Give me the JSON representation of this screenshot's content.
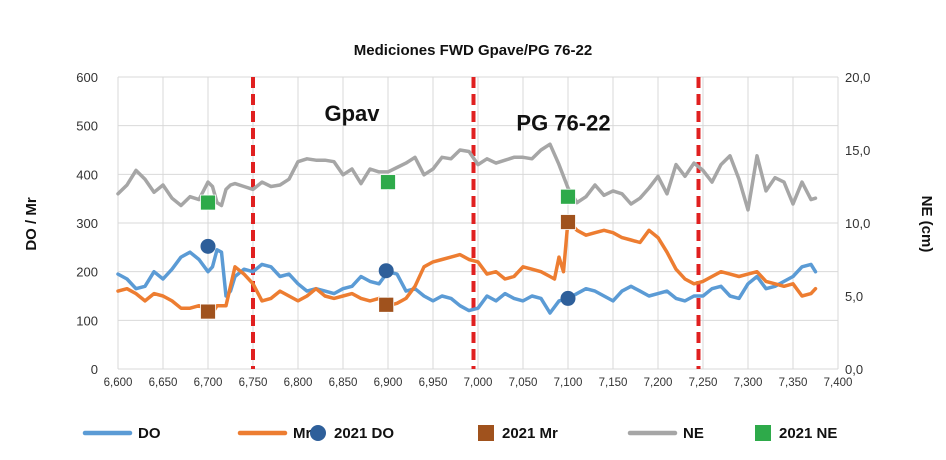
{
  "chart_data": {
    "type": "line",
    "title": "Mediciones FWD Gpave/PG 76-22",
    "ylabel": "DO / Mr",
    "y2label": "NE (cm)",
    "xlim": [
      6600,
      7400
    ],
    "ylim": [
      0,
      600
    ],
    "y2lim": [
      0,
      20
    ],
    "x_ticks": [
      "6,600",
      "6,650",
      "6,700",
      "6,750",
      "6,800",
      "6,850",
      "6,900",
      "6,950",
      "7,000",
      "7,050",
      "7,100",
      "7,150",
      "7,200",
      "7,250",
      "7,300",
      "7,350",
      "7,400"
    ],
    "y_ticks": [
      "0",
      "100",
      "200",
      "300",
      "400",
      "500",
      "600"
    ],
    "y2_ticks": [
      "0,0",
      "5,0",
      "10,0",
      "15,0",
      "20,0"
    ],
    "grid": true,
    "legend_position": "bottom",
    "annotations": [
      {
        "text": "Gpav",
        "x": 6860,
        "y": 510
      },
      {
        "text": "PG 76-22",
        "x": 7095,
        "y": 490
      }
    ],
    "section_dividers": [
      6750,
      6995,
      7245
    ],
    "series": [
      {
        "name": "DO",
        "axis": "left",
        "color": "#5b9bd5",
        "x": [
          6600,
          6610,
          6620,
          6630,
          6640,
          6650,
          6660,
          6670,
          6680,
          6690,
          6700,
          6705,
          6710,
          6715,
          6720,
          6725,
          6730,
          6740,
          6750,
          6760,
          6770,
          6780,
          6790,
          6800,
          6810,
          6820,
          6830,
          6840,
          6850,
          6860,
          6870,
          6880,
          6890,
          6900,
          6910,
          6920,
          6930,
          6940,
          6950,
          6960,
          6970,
          6980,
          6990,
          7000,
          7010,
          7020,
          7030,
          7040,
          7050,
          7060,
          7070,
          7080,
          7090,
          7100,
          7110,
          7120,
          7130,
          7140,
          7150,
          7160,
          7170,
          7180,
          7190,
          7200,
          7210,
          7220,
          7230,
          7240,
          7250,
          7260,
          7270,
          7280,
          7290,
          7300,
          7310,
          7320,
          7330,
          7340,
          7350,
          7360,
          7370,
          7375
        ],
        "y": [
          195,
          185,
          165,
          170,
          200,
          185,
          205,
          230,
          240,
          225,
          200,
          210,
          245,
          240,
          150,
          160,
          190,
          205,
          200,
          215,
          210,
          190,
          195,
          175,
          160,
          165,
          160,
          155,
          165,
          170,
          190,
          180,
          175,
          200,
          195,
          160,
          165,
          150,
          140,
          150,
          145,
          130,
          120,
          125,
          150,
          140,
          155,
          145,
          140,
          150,
          145,
          115,
          140,
          145,
          155,
          165,
          160,
          150,
          140,
          160,
          170,
          160,
          150,
          155,
          160,
          145,
          140,
          150,
          150,
          165,
          170,
          150,
          145,
          175,
          190,
          165,
          170,
          180,
          190,
          210,
          215,
          200
        ]
      },
      {
        "name": "Mr",
        "axis": "left",
        "color": "#ed7d31",
        "x": [
          6600,
          6610,
          6620,
          6630,
          6640,
          6650,
          6660,
          6670,
          6680,
          6690,
          6700,
          6705,
          6710,
          6720,
          6730,
          6740,
          6750,
          6760,
          6770,
          6780,
          6790,
          6800,
          6810,
          6820,
          6830,
          6840,
          6850,
          6860,
          6870,
          6880,
          6890,
          6900,
          6910,
          6920,
          6930,
          6940,
          6950,
          6960,
          6970,
          6980,
          6990,
          7000,
          7010,
          7020,
          7030,
          7040,
          7050,
          7060,
          7070,
          7080,
          7085,
          7090,
          7095,
          7100,
          7110,
          7120,
          7130,
          7140,
          7150,
          7160,
          7170,
          7180,
          7190,
          7200,
          7210,
          7220,
          7230,
          7240,
          7250,
          7260,
          7270,
          7280,
          7290,
          7300,
          7310,
          7320,
          7330,
          7340,
          7350,
          7360,
          7370,
          7375
        ],
        "y": [
          160,
          165,
          155,
          140,
          155,
          150,
          140,
          125,
          125,
          130,
          120,
          115,
          130,
          130,
          210,
          195,
          175,
          140,
          145,
          160,
          150,
          140,
          150,
          165,
          150,
          145,
          150,
          155,
          145,
          140,
          145,
          130,
          135,
          145,
          170,
          210,
          220,
          225,
          230,
          235,
          225,
          220,
          195,
          200,
          185,
          190,
          210,
          205,
          200,
          190,
          185,
          230,
          200,
          305,
          285,
          275,
          280,
          285,
          280,
          270,
          265,
          260,
          285,
          270,
          240,
          205,
          185,
          175,
          180,
          190,
          200,
          195,
          190,
          195,
          200,
          180,
          175,
          170,
          175,
          150,
          155,
          165
        ]
      },
      {
        "name": "NE",
        "axis": "right",
        "color": "#a6a6a6",
        "x": [
          6600,
          6610,
          6620,
          6630,
          6640,
          6650,
          6660,
          6670,
          6680,
          6690,
          6700,
          6705,
          6710,
          6715,
          6720,
          6725,
          6730,
          6740,
          6750,
          6760,
          6770,
          6780,
          6790,
          6800,
          6810,
          6820,
          6830,
          6840,
          6850,
          6860,
          6870,
          6880,
          6890,
          6900,
          6910,
          6920,
          6930,
          6940,
          6950,
          6960,
          6970,
          6980,
          6990,
          7000,
          7010,
          7020,
          7030,
          7040,
          7050,
          7060,
          7070,
          7080,
          7090,
          7100,
          7110,
          7120,
          7130,
          7140,
          7150,
          7160,
          7170,
          7180,
          7190,
          7200,
          7210,
          7220,
          7230,
          7240,
          7250,
          7260,
          7270,
          7280,
          7290,
          7300,
          7310,
          7320,
          7330,
          7340,
          7350,
          7360,
          7370,
          7375
        ],
        "y": [
          12,
          12.6,
          13.6,
          13.0,
          12.1,
          12.6,
          11.7,
          11.2,
          11.8,
          11.6,
          12.8,
          12.5,
          11.4,
          11.2,
          12.3,
          12.6,
          12.7,
          12.5,
          12.3,
          12.8,
          12.5,
          12.6,
          13.0,
          14.2,
          14.4,
          14.3,
          14.3,
          14.2,
          13.3,
          13.7,
          12.7,
          13.7,
          13.5,
          13.5,
          13.8,
          14.1,
          14.5,
          13.3,
          13.7,
          14.5,
          14.4,
          15.0,
          14.9,
          14.0,
          14.4,
          14.1,
          14.3,
          14.5,
          14.5,
          14.4,
          15.0,
          15.4,
          14.0,
          12.4,
          11.4,
          11.8,
          12.6,
          11.9,
          12.2,
          12.0,
          11.3,
          11.7,
          12.4,
          13.2,
          12.0,
          14.0,
          13.2,
          14.1,
          13.6,
          12.8,
          14.0,
          14.6,
          13.0,
          10.9,
          14.6,
          12.2,
          13.1,
          12.8,
          11.3,
          12.8,
          11.6,
          11.7
        ]
      }
    ],
    "points": [
      {
        "name": "2021 DO",
        "axis": "left",
        "marker": "circle",
        "color": "#2e5f9a",
        "x": [
          6700,
          6898,
          7100
        ],
        "y": [
          252,
          202,
          145
        ]
      },
      {
        "name": "2021 Mr",
        "axis": "left",
        "marker": "square",
        "color": "#a0521d",
        "x": [
          6700,
          6898,
          7100
        ],
        "y": [
          118,
          132,
          302
        ]
      },
      {
        "name": "2021 NE",
        "axis": "right",
        "marker": "square",
        "color": "#2eaa4a",
        "x": [
          6700,
          6900,
          7100
        ],
        "y": [
          11.4,
          12.8,
          11.8
        ]
      }
    ]
  },
  "legend": {
    "items": [
      {
        "label": "DO",
        "type": "line",
        "color": "#5b9bd5"
      },
      {
        "label": "Mr",
        "type": "line",
        "color": "#ed7d31"
      },
      {
        "label": "2021 DO",
        "type": "circle",
        "color": "#2e5f9a"
      },
      {
        "label": "2021 Mr",
        "type": "square",
        "color": "#a0521d"
      },
      {
        "label": "NE",
        "type": "line",
        "color": "#a6a6a6"
      },
      {
        "label": "2021 NE",
        "type": "square",
        "color": "#2eaa4a"
      }
    ]
  },
  "colors": {
    "grid": "#d9d9d9",
    "divider": "#e02020",
    "axis_text": "#333333"
  }
}
